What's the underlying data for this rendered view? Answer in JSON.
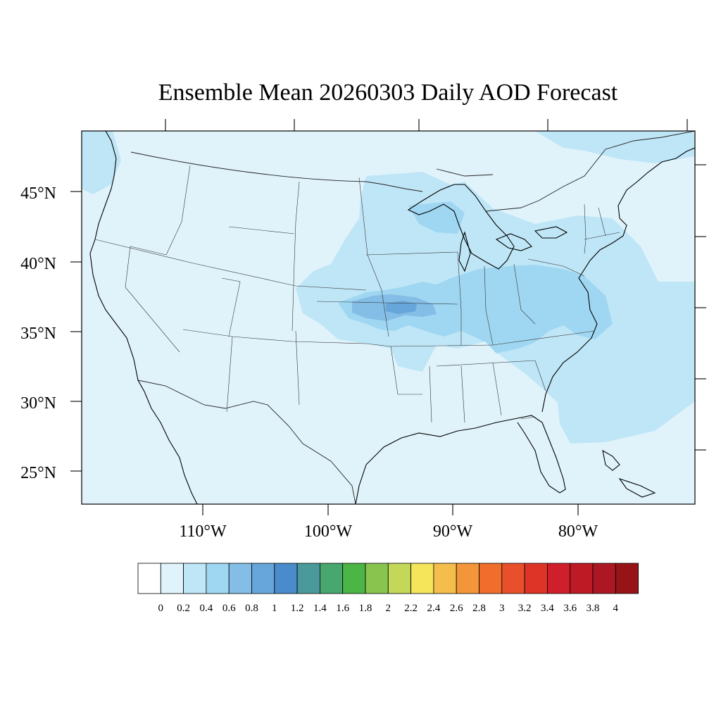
{
  "title": "Ensemble Mean 20260303 Daily AOD Forecast",
  "lat_labels": [
    "45°N",
    "40°N",
    "35°N",
    "30°N",
    "25°N"
  ],
  "lon_labels": [
    "110°W",
    "100°W",
    "90°W",
    "80°W"
  ],
  "colorbar": {
    "colors": [
      "#ffffff",
      "#e0f3fb",
      "#bfe6f7",
      "#9fd7f2",
      "#84bde6",
      "#67a6da",
      "#4a8bcb",
      "#4a9a9b",
      "#47a76f",
      "#4bb545",
      "#88c44e",
      "#c3d759",
      "#f4e55b",
      "#f5bd4b",
      "#f3963a",
      "#f06d2b",
      "#e8502b",
      "#de3427",
      "#cf1f2a",
      "#be1a25",
      "#ab1722",
      "#961417"
    ],
    "labels": [
      "0",
      "0.2",
      "0.4",
      "0.6",
      "0.8",
      "1",
      "1.2",
      "1.4",
      "1.6",
      "1.8",
      "2",
      "2.2",
      "2.4",
      "2.6",
      "2.8",
      "3",
      "3.2",
      "3.4",
      "3.6",
      "3.8",
      "4"
    ]
  }
}
